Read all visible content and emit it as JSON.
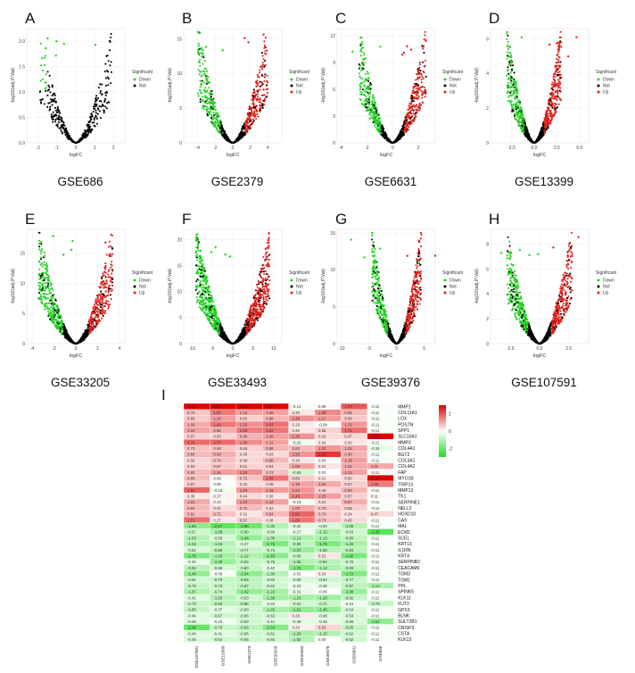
{
  "figure": {
    "colors": {
      "down": "#22d322",
      "not": "#000000",
      "up": "#e0201b",
      "grid": "#ececec",
      "axis": "#888888"
    },
    "volcano_panels": [
      {
        "letter": "A",
        "dataset": "GSE686",
        "xticks": [
          "-2",
          "-1",
          "0",
          "1",
          "2"
        ],
        "xlim": [
          -2.6,
          2.6
        ],
        "yticks": [
          "0.0",
          "0.5",
          "1.0",
          "1.5",
          "2.0"
        ],
        "ylim": [
          0,
          2.25
        ],
        "legend": [
          "Down",
          "Not"
        ],
        "seed": 11,
        "spread": 1.9,
        "peak": 2.05,
        "n": 420,
        "up_frac": 0.0,
        "down_frac": 0.02,
        "shape": "v"
      },
      {
        "letter": "B",
        "dataset": "GSE2379",
        "xticks": [
          "-4",
          "-2",
          "0",
          "2",
          "4"
        ],
        "xlim": [
          -5.6,
          5.6
        ],
        "yticks": [
          "0",
          "5",
          "10",
          "15"
        ],
        "ylim": [
          0,
          16.5
        ],
        "legend": [
          "Down",
          "Not",
          "Up"
        ],
        "seed": 23,
        "spread": 4.0,
        "peak": 15.8,
        "n": 900,
        "up_frac": 0.08,
        "down_frac": 0.12,
        "shape": "v"
      },
      {
        "letter": "C",
        "dataset": "GSE6631",
        "xticks": [
          "-4",
          "-2",
          "0",
          "2"
        ],
        "xlim": [
          -4.3,
          3.3
        ],
        "yticks": [
          "0",
          "3",
          "6",
          "9",
          "12"
        ],
        "ylim": [
          0,
          12.8
        ],
        "legend": [
          "Down",
          "Not",
          "Up"
        ],
        "seed": 37,
        "spread": 2.6,
        "peak": 12.2,
        "n": 1000,
        "up_frac": 0.04,
        "down_frac": 0.1,
        "shape": "v"
      },
      {
        "letter": "D",
        "dataset": "GSE13399",
        "xticks": [
          "-2.5",
          "0.0",
          "2.5",
          "5.0"
        ],
        "xlim": [
          -4.8,
          6.0
        ],
        "yticks": [
          "0",
          "2",
          "4",
          "6"
        ],
        "ylim": [
          0,
          6.6
        ],
        "legend": [
          "Down",
          "Not",
          "Up"
        ],
        "seed": 41,
        "spread": 3.0,
        "peak": 6.2,
        "n": 1100,
        "up_frac": 0.08,
        "down_frac": 0.08,
        "shape": "v"
      },
      {
        "letter": "E",
        "dataset": "GSE33205",
        "xticks": [
          "-4",
          "-2",
          "0",
          "2",
          "4"
        ],
        "xlim": [
          -4.5,
          4.5
        ],
        "yticks": [
          "0",
          "5",
          "10",
          "15"
        ],
        "ylim": [
          0,
          19
        ],
        "legend": [
          "Down",
          "Not",
          "Up"
        ],
        "seed": 53,
        "spread": 3.4,
        "peak": 18,
        "n": 1300,
        "up_frac": 0.1,
        "down_frac": 0.14,
        "shape": "v"
      },
      {
        "letter": "F",
        "dataset": "GSE33493",
        "xticks": [
          "-10",
          "-5",
          "0",
          "5",
          "10"
        ],
        "xlim": [
          -12,
          12
        ],
        "yticks": [
          "0",
          "5",
          "10",
          "15",
          "20"
        ],
        "ylim": [
          0,
          22
        ],
        "legend": [
          "Down",
          "Not",
          "Up"
        ],
        "seed": 67,
        "spread": 9,
        "peak": 20.5,
        "n": 1400,
        "up_frac": 0.22,
        "down_frac": 0.2,
        "shape": "u"
      },
      {
        "letter": "G",
        "dataset": "GSE39376",
        "xticks": [
          "-10",
          "-5",
          "0",
          "5"
        ],
        "xlim": [
          -10.8,
          7
        ],
        "yticks": [
          "0",
          "5",
          "10",
          "15"
        ],
        "ylim": [
          0,
          15.5
        ],
        "legend": [
          "Down",
          "Not",
          "Up"
        ],
        "seed": 71,
        "spread": 4.5,
        "peak": 14.8,
        "n": 900,
        "up_frac": 0.08,
        "down_frac": 0.12,
        "shape": "u"
      },
      {
        "letter": "H",
        "dataset": "GSE107591",
        "xticks": [
          "-2.5",
          "0.0",
          "2.5"
        ],
        "xlim": [
          -4.2,
          4.2
        ],
        "yticks": [
          "0",
          "2",
          "4",
          "6",
          "8"
        ],
        "ylim": [
          0,
          9.2
        ],
        "legend": [
          "Down",
          "Not",
          "Up"
        ],
        "seed": 83,
        "spread": 2.8,
        "peak": 8.6,
        "n": 1200,
        "up_frac": 0.08,
        "down_frac": 0.1,
        "shape": "v"
      }
    ],
    "axis_labels": {
      "x": "logFC",
      "y": "-log10(adj.P.Val)"
    },
    "legend_title": "Significant"
  },
  "chart_data": [
    {
      "type": "scatter",
      "dataset": "GSE686",
      "xlabel": "logFC",
      "ylabel": "-log10(adj.P.Val)",
      "xlim": [
        -2.6,
        2.6
      ],
      "ylim": [
        0,
        2.25
      ],
      "series": [
        "Down",
        "Not"
      ]
    },
    {
      "type": "scatter",
      "dataset": "GSE2379",
      "xlabel": "logFC",
      "ylabel": "-log10(adj.P.Val)",
      "xlim": [
        -5.6,
        5.6
      ],
      "ylim": [
        0,
        16.5
      ],
      "series": [
        "Down",
        "Not",
        "Up"
      ]
    },
    {
      "type": "scatter",
      "dataset": "GSE6631",
      "xlabel": "logFC",
      "ylabel": "-log10(adj.P.Val)",
      "xlim": [
        -4.3,
        3.3
      ],
      "ylim": [
        0,
        12.8
      ],
      "series": [
        "Down",
        "Not",
        "Up"
      ]
    },
    {
      "type": "scatter",
      "dataset": "GSE13399",
      "xlabel": "logFC",
      "ylabel": "-log10(adj.P.Val)",
      "xlim": [
        -4.8,
        6.0
      ],
      "ylim": [
        0,
        6.6
      ],
      "series": [
        "Down",
        "Not",
        "Up"
      ]
    },
    {
      "type": "scatter",
      "dataset": "GSE33205",
      "xlabel": "logFC",
      "ylabel": "-log10(adj.P.Val)",
      "xlim": [
        -4.5,
        4.5
      ],
      "ylim": [
        0,
        19
      ],
      "series": [
        "Down",
        "Not",
        "Up"
      ]
    },
    {
      "type": "scatter",
      "dataset": "GSE33493",
      "xlabel": "logFC",
      "ylabel": "-log10(adj.P.Val)",
      "xlim": [
        -12,
        12
      ],
      "ylim": [
        0,
        22
      ],
      "series": [
        "Down",
        "Not",
        "Up"
      ]
    },
    {
      "type": "scatter",
      "dataset": "GSE39376",
      "xlabel": "logFC",
      "ylabel": "-log10(adj.P.Val)",
      "xlim": [
        -10.8,
        7
      ],
      "ylim": [
        0,
        15.5
      ],
      "series": [
        "Down",
        "Not",
        "Up"
      ]
    },
    {
      "type": "scatter",
      "dataset": "GSE107591",
      "xlabel": "logFC",
      "ylabel": "-log10(adj.P.Val)",
      "xlim": [
        -4.2,
        4.2
      ],
      "ylim": [
        0,
        9.2
      ],
      "series": [
        "Down",
        "Not",
        "Up"
      ]
    },
    {
      "type": "heatmap",
      "letter": "I",
      "columns": [
        "GSE107591",
        "GSE13399",
        "GSE2379",
        "GSE33205",
        "GSE33493",
        "GSE39376",
        "GSE6631",
        "GSE686"
      ],
      "legend_ticks": [
        "2",
        "0",
        "-2"
      ],
      "colorscale": {
        "min": -3,
        "mid": 0,
        "max": 3,
        "low": "#22dd22",
        "midcolor": "#ffffff",
        "high": "#e00000"
      },
      "rows": [
        {
          "gene": "MMP1",
          "values": [
            2.95,
            2.96,
            3.13,
            2.95,
            -0.12,
            0.08,
            1.97,
            -0.11
          ]
        },
        {
          "gene": "COL11A1",
          "values": [
            0.7,
            1.57,
            1.1,
            1.09,
            0.3,
            1.39,
            0.85,
            -0.11
          ]
        },
        {
          "gene": "LOX",
          "values": [
            0.63,
            1.15,
            0.55,
            0.88,
            1.3,
            1.17,
            0.65,
            -0.11
          ]
        },
        {
          "gene": "POSTN",
          "values": [
            1.0,
            1.61,
            1.32,
            1.67,
            0.26,
            -0.08,
            1.22,
            -0.11
          ]
        },
        {
          "gene": "SPP1",
          "values": [
            1.1,
            0.96,
            1.53,
            1.62,
            0.3,
            0.55,
            1.71,
            -0.11
          ]
        },
        {
          "gene": "SLC16A1",
          "values": [
            0.57,
            0.5,
            0.89,
            1.09,
            1.3,
            0.43,
            0.47,
            3.0
          ]
        },
        {
          "gene": "MMP3",
          "values": [
            1.76,
            1.77,
            1.35,
            1.11,
            -0.22,
            0.26,
            0.3,
            -0.11
          ]
        },
        {
          "gene": "COL4A1",
          "values": [
            0.73,
            0.68,
            0.56,
            0.88,
            0.82,
            1.23,
            1.03,
            -0.34
          ]
        },
        {
          "gene": "BGT2",
          "values": [
            0.84,
            0.94,
            0.45,
            0.43,
            1.26,
            2.36,
            0.9,
            -0.11
          ]
        },
        {
          "gene": "COL3A1",
          "values": [
            0.5,
            0.74,
            0.49,
            0.88,
            0.3,
            0.04,
            1.15,
            -0.11
          ]
        },
        {
          "gene": "COL4A2",
          "values": [
            0.53,
            0.67,
            0.51,
            0.54,
            1.08,
            0.31,
            1.02,
            1.01
          ]
        },
        {
          "gene": "FAP",
          "values": [
            0.82,
            1.15,
            1.33,
            0.73,
            -0.65,
            0.02,
            1.12,
            -0.11
          ]
        },
        {
          "gene": "MYO1B",
          "values": [
            0.8,
            0.08,
            0.72,
            1.65,
            0.6,
            0.31,
            0.5,
            3.0
          ]
        },
        {
          "gene": "TRIP13",
          "values": [
            0.57,
            0.05,
            0.42,
            0.45,
            1.1,
            1.04,
            0.57,
            1.59
          ]
        },
        {
          "gene": "MMP13",
          "values": [
            1.81,
            -0.18,
            1.2,
            1.19,
            1.24,
            0.49,
            0.9,
            -0.11
          ]
        },
        {
          "gene": "TK1",
          "values": [
            0.3,
            0.17,
            0.44,
            0.3,
            1.45,
            1.15,
            0.57,
            0.11
          ]
        },
        {
          "gene": "SERPINE1",
          "values": [
            1.01,
            0.14,
            1.22,
            1.12,
            -0.19,
            0.41,
            0.97,
            -0.11
          ]
        },
        {
          "gene": "NELL2",
          "values": [
            0.84,
            0.41,
            0.76,
            0.43,
            1.0,
            0.7,
            0.58,
            -0.11
          ]
        },
        {
          "gene": "HOXD10",
          "values": [
            0.81,
            0.72,
            0.31,
            0.84,
            1.81,
            0.7,
            0.34,
            0.47
          ]
        },
        {
          "gene": "CA9",
          "values": [
            1.71,
            0.27,
            0.57,
            0.38,
            1.6,
            0.73,
            0.45,
            -0.11
          ]
        },
        {
          "gene": "MAL",
          "values": [
            -1.56,
            -2.17,
            -1.98,
            -1.0,
            -0.42,
            -0.5,
            -1.05,
            -0.11
          ]
        },
        {
          "gene": "ECM1",
          "values": [
            -0.67,
            -1.08,
            -0.9,
            -0.6,
            -0.27,
            -1.12,
            -0.63,
            -2.26
          ]
        },
        {
          "gene": "SCEL",
          "values": [
            -1.03,
            -0.55,
            -1.48,
            -1.06,
            -1.13,
            -1.1,
            -0.85,
            -0.11
          ]
        },
        {
          "gene": "KRT13",
          "values": [
            -1.04,
            -1.03,
            -0.47,
            -1.75,
            -0.89,
            -1.76,
            -1.2,
            -0.11
          ]
        },
        {
          "gene": "IL1RN",
          "values": [
            -0.52,
            -0.89,
            -0.77,
            -0.74,
            -1.37,
            -1.0,
            -0.93,
            -0.11
          ]
        },
        {
          "gene": "KRT4",
          "values": [
            -1.75,
            -1.26,
            -1.12,
            -1.63,
            -0.68,
            0.31,
            -1.82,
            -0.11
          ]
        },
        {
          "gene": "SERPINB2",
          "values": [
            -0.3,
            -1.39,
            -0.83,
            -0.75,
            -1.06,
            -0.94,
            -0.7,
            -0.11
          ]
        },
        {
          "gene": "CEACAM6",
          "values": [
            -0.93,
            -0.58,
            -0.8,
            -0.4,
            -1.72,
            -1.12,
            -0.89,
            -0.11
          ]
        },
        {
          "gene": "TGM3",
          "values": [
            -1.48,
            -0.08,
            -1.54,
            -1.0,
            -0.03,
            0.24,
            -1.72,
            -0.11
          ]
        },
        {
          "gene": "TGM1",
          "values": [
            -0.62,
            -0.79,
            -0.93,
            -0.6,
            -0.5,
            -0.64,
            -0.77,
            -0.11
          ]
        },
        {
          "gene": "PPL",
          "values": [
            -0.79,
            -0.73,
            -0.87,
            -0.62,
            -0.23,
            -0.36,
            -0.87,
            -1.13
          ]
        },
        {
          "gene": "SPINK5",
          "values": [
            -1.07,
            -0.74,
            -1.42,
            -1.22,
            -0.31,
            -0.06,
            -1.38,
            -0.11
          ]
        },
        {
          "gene": "KLK11",
          "values": [
            -0.41,
            -1.02,
            -0.63,
            -1.28,
            -1.23,
            -1.28,
            -0.82,
            -0.11
          ]
        },
        {
          "gene": "FUT3",
          "values": [
            -0.73,
            -0.93,
            -0.88,
            -0.33,
            -0.64,
            -0.71,
            -0.24,
            -0.78
          ]
        },
        {
          "gene": "GPX3",
          "values": [
            -0.8,
            -0.37,
            -0.6,
            -1.2,
            -1.51,
            -1.45,
            -0.54,
            -0.11
          ]
        },
        {
          "gene": "BLNK",
          "values": [
            -0.46,
            -0.67,
            -0.66,
            -0.63,
            0.26,
            -0.48,
            -0.53,
            -0.11
          ]
        },
        {
          "gene": "SULT2B1",
          "values": [
            -0.45,
            -0.19,
            -0.63,
            -0.44,
            -0.39,
            -0.36,
            -0.56,
            -1.52
          ]
        },
        {
          "gene": "CRISP3",
          "values": [
            -2.08,
            -0.79,
            -0.93,
            -1.64,
            0.2,
            0.52,
            -0.85,
            -0.11
          ]
        },
        {
          "gene": "CSTA",
          "values": [
            -0.44,
            -0.41,
            -0.66,
            -0.61,
            -1.2,
            -1.1,
            -0.62,
            -0.11
          ]
        },
        {
          "gene": "KLK13",
          "values": [
            -0.49,
            -0.64,
            -0.66,
            -0.6,
            -1.02,
            -0.0,
            -0.62,
            -0.11
          ]
        }
      ]
    }
  ]
}
